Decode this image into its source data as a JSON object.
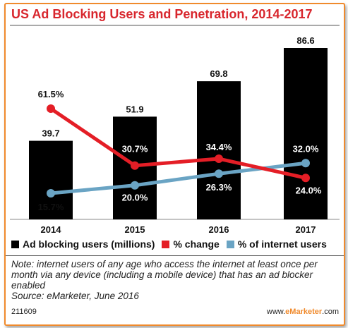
{
  "title": "US Ad Blocking Users and Penetration, 2014-2017",
  "colors": {
    "title": "#d8262d",
    "frame": "#f08a2c",
    "bar": "#000000",
    "change": "#e41e26",
    "internet": "#6aa4c4"
  },
  "chart_data": {
    "type": "bar",
    "categories": [
      "2014",
      "2015",
      "2016",
      "2017"
    ],
    "series": [
      {
        "name": "Ad blocking users (millions)",
        "type": "bar",
        "values": [
          39.7,
          51.9,
          69.8,
          86.6
        ],
        "labels": [
          "39.7",
          "51.9",
          "69.8",
          "86.6"
        ]
      },
      {
        "name": "% change",
        "type": "line",
        "values": [
          61.5,
          30.7,
          34.4,
          24.0
        ],
        "labels": [
          "61.5%",
          "30.7%",
          "34.4%",
          "24.0%"
        ]
      },
      {
        "name": "% of internet users",
        "type": "line",
        "values": [
          15.7,
          20.0,
          26.3,
          32.0
        ],
        "labels": [
          "15.7%",
          "20.0%",
          "26.3%",
          "32.0%"
        ]
      }
    ],
    "legend": "bottom"
  },
  "legend": [
    {
      "label": "Ad blocking users (millions)",
      "color": "#000000"
    },
    {
      "label": "% change",
      "color": "#e41e26"
    },
    {
      "label": "% of internet users",
      "color": "#6aa4c4"
    }
  ],
  "note": "Note: internet users of any age who access the internet at least once per month via any device (including a mobile device) that has an ad blocker enabled",
  "source": "Source: eMarketer, June 2016",
  "chart_id": "211609",
  "brand": {
    "pre": "www.",
    "name": "eMarketer",
    "post": ".com"
  }
}
